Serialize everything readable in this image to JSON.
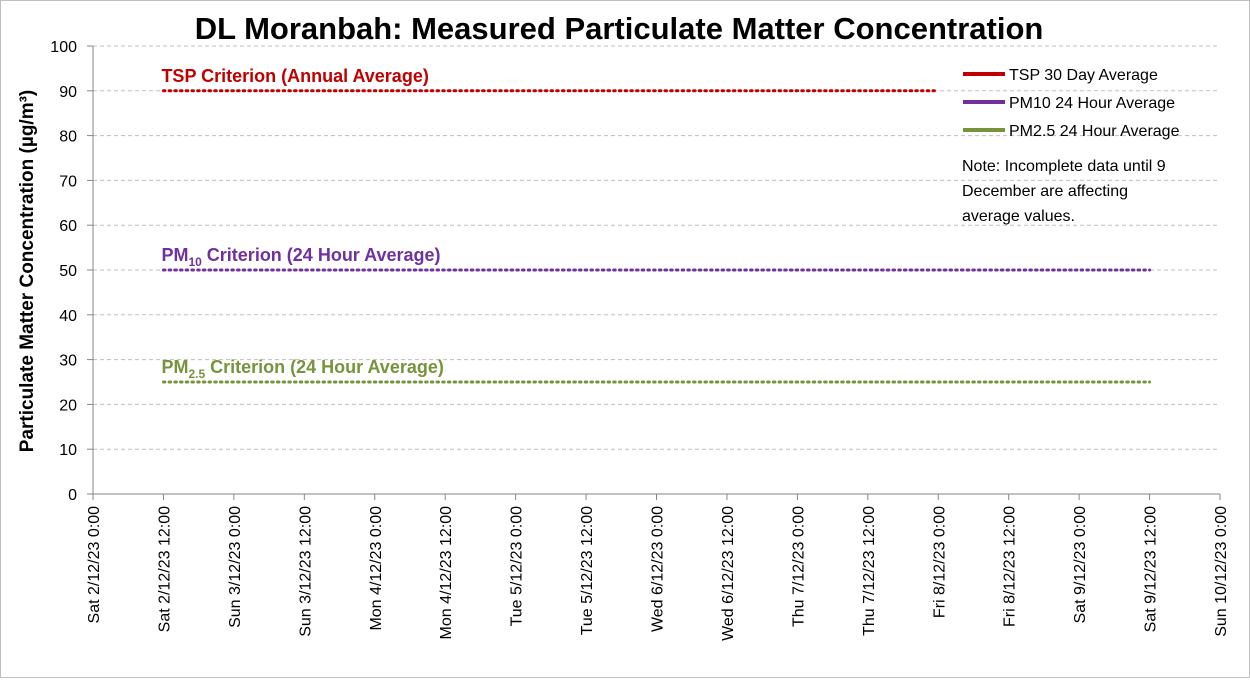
{
  "chart_data": {
    "type": "line",
    "title": "DL Moranbah: Measured Particulate Matter Concentration",
    "ylabel": "Particulate Matter Concentration (µg/m³)",
    "xlabel": "",
    "ylim": [
      0,
      100
    ],
    "yticks": [
      0,
      10,
      20,
      30,
      40,
      50,
      60,
      70,
      80,
      90,
      100
    ],
    "y_grid": true,
    "x_categories": [
      "Sat 2/12/23 0:00",
      "Sat 2/12/23 12:00",
      "Sun 3/12/23 0:00",
      "Sun 3/12/23 12:00",
      "Mon 4/12/23 0:00",
      "Mon 4/12/23 12:00",
      "Tue 5/12/23 0:00",
      "Tue 5/12/23 12:00",
      "Wed 6/12/23 0:00",
      "Wed 6/12/23 12:00",
      "Thu 7/12/23 0:00",
      "Thu 7/12/23 12:00",
      "Fri 8/12/23 0:00",
      "Fri 8/12/23 12:00",
      "Sat 9/12/23 0:00",
      "Sat 9/12/23 12:00",
      "Sun 10/12/23 0:00"
    ],
    "legend_position": "top-right",
    "legend": [
      {
        "name": "TSP 30 Day Average",
        "color": "#c00000"
      },
      {
        "name": "PM10 24 Hour Average",
        "color": "#7030a0"
      },
      {
        "name": "PM2.5 24 Hour Average",
        "color": "#77933c"
      }
    ],
    "series": [],
    "criteria": [
      {
        "base": "TSP Criterion (Annual Average)",
        "sub": "",
        "rest": "",
        "value": 90,
        "x_from": "Sat 2/12/23 12:00",
        "x_to": "Fri 8/12/23 0:00",
        "color": "#c00000"
      },
      {
        "base": "PM",
        "sub": "10",
        "rest": " Criterion (24 Hour Average)",
        "value": 50,
        "x_from": "Sat 2/12/23 12:00",
        "x_to": "Sat 9/12/23 12:00",
        "color": "#7030a0"
      },
      {
        "base": "PM",
        "sub": "2.5",
        "rest": " Criterion (24 Hour Average)",
        "value": 25,
        "x_from": "Sat 2/12/23 12:00",
        "x_to": "Sat 9/12/23 12:00",
        "color": "#77933c"
      }
    ],
    "note": [
      "Note: Incomplete data until 9",
      "December are affecting",
      "average values."
    ]
  }
}
